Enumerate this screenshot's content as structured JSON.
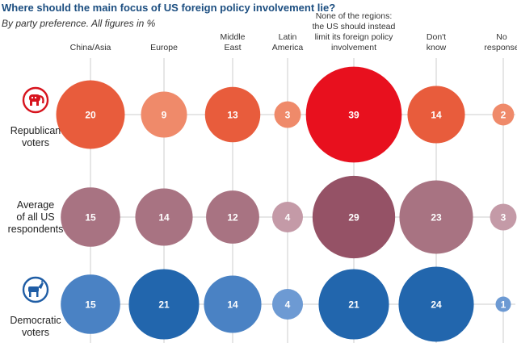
{
  "title": "Where should the main focus of US foreign policy involvement lie?",
  "subtitle": "By party preference. All figures in %",
  "chart_data": {
    "type": "bubble-grid",
    "categories": [
      "China/Asia",
      "Europe",
      "Middle East",
      "Latin America",
      "None of the regions: the US should instead limit its foreign policy involvement",
      "Don't know",
      "No response"
    ],
    "category_label_lines": [
      [
        "China/Asia"
      ],
      [
        "Europe"
      ],
      [
        "Middle",
        "East"
      ],
      [
        "Latin",
        "America"
      ],
      [
        "None of the regions:",
        "the US should instead",
        "limit its foreign policy",
        "involvement"
      ],
      [
        "Don't",
        "know"
      ],
      [
        "No",
        "response"
      ]
    ],
    "series": [
      {
        "name": "Republican voters",
        "label_lines": [
          "Republican",
          "voters"
        ],
        "icon": "republican-elephant-icon",
        "color": "#e54e3a",
        "values": [
          20,
          9,
          13,
          3,
          39,
          14,
          2
        ]
      },
      {
        "name": "Average of all US respondents",
        "label_lines": [
          "Average",
          "of all US",
          "respondents"
        ],
        "icon": "",
        "color": "#a5707f",
        "values": [
          15,
          14,
          12,
          4,
          29,
          23,
          3
        ]
      },
      {
        "name": "Democratic voters",
        "label_lines": [
          "Democratic",
          "voters"
        ],
        "icon": "democratic-donkey-icon",
        "color": "#2f6fb2",
        "values": [
          15,
          21,
          14,
          4,
          21,
          24,
          1
        ]
      }
    ],
    "colors": {
      "republican_large": "#e8101e",
      "republican_mid": "#e85c3c",
      "republican_small": "#ef8a6a",
      "average_large": "#955266",
      "average_mid": "#a87382",
      "average_small": "#c49aa7",
      "democratic_large": "#2266ad",
      "democratic_mid": "#4a82c4",
      "democratic_small": "#6d9ad3",
      "grid": "#d6d6d6",
      "title": "#1c4e80"
    }
  }
}
